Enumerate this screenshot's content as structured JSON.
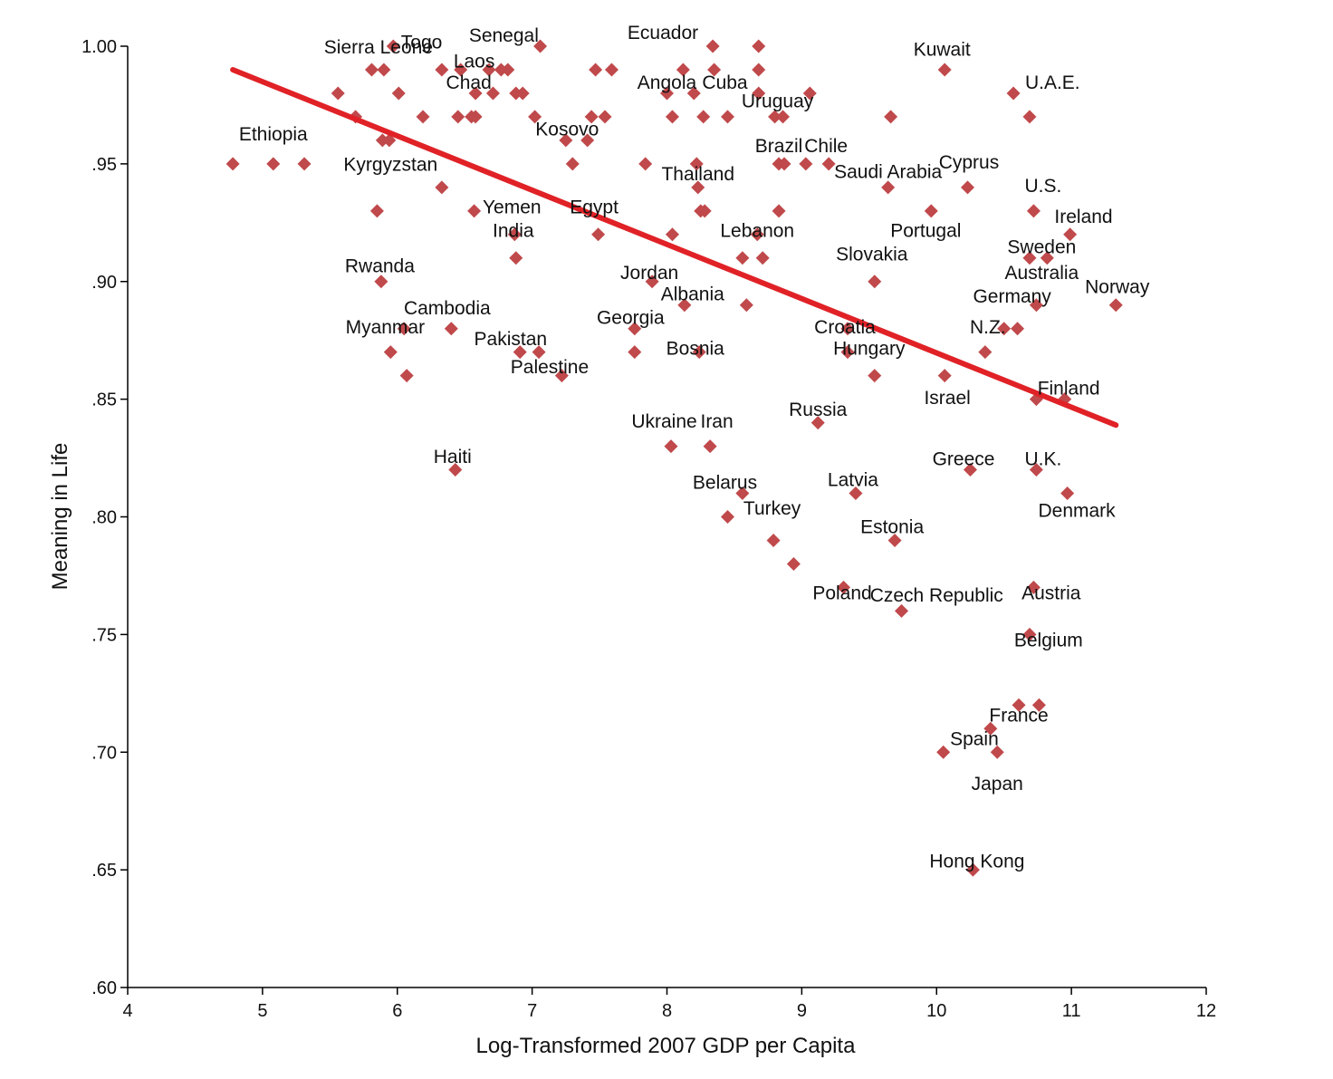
{
  "chart_data": {
    "type": "scatter",
    "xlabel": "Log-Transformed 2007 GDP per Capita",
    "ylabel": "Meaning in Life",
    "xlim": [
      4,
      12
    ],
    "ylim": [
      0.6,
      1.0
    ],
    "x_ticks": [
      4,
      5,
      6,
      7,
      8,
      9,
      10,
      11,
      12
    ],
    "x_tick_labels": [
      "4",
      "5",
      "6",
      "7",
      "8",
      "9",
      "10",
      "11",
      "12"
    ],
    "y_ticks": [
      0.6,
      0.65,
      0.7,
      0.75,
      0.8,
      0.85,
      0.9,
      0.95,
      1.0
    ],
    "y_tick_labels": [
      ".60",
      ".65",
      ".70",
      ".75",
      ".80",
      ".85",
      ".90",
      ".95",
      "1.00"
    ],
    "grid": false,
    "marker": "diamond",
    "point_color": "#c0494b",
    "trend_color": "#e02227",
    "trendline": {
      "x": [
        4.78,
        11.33
      ],
      "y": [
        0.99,
        0.839
      ]
    },
    "points": [
      {
        "x": 4.78,
        "y": 0.95
      },
      {
        "x": 5.08,
        "y": 0.95
      },
      {
        "x": 5.31,
        "y": 0.95
      },
      {
        "x": 5.56,
        "y": 0.98
      },
      {
        "x": 5.69,
        "y": 0.97
      },
      {
        "x": 5.81,
        "y": 0.99
      },
      {
        "x": 5.9,
        "y": 0.99
      },
      {
        "x": 5.97,
        "y": 1.0
      },
      {
        "x": 6.01,
        "y": 0.98
      },
      {
        "x": 5.89,
        "y": 0.96
      },
      {
        "x": 5.94,
        "y": 0.96
      },
      {
        "x": 5.85,
        "y": 0.93
      },
      {
        "x": 5.88,
        "y": 0.9
      },
      {
        "x": 6.05,
        "y": 0.88
      },
      {
        "x": 5.95,
        "y": 0.87
      },
      {
        "x": 6.07,
        "y": 0.86
      },
      {
        "x": 6.19,
        "y": 0.97
      },
      {
        "x": 6.33,
        "y": 0.99
      },
      {
        "x": 6.33,
        "y": 0.94
      },
      {
        "x": 6.47,
        "y": 0.99
      },
      {
        "x": 6.45,
        "y": 0.97
      },
      {
        "x": 6.55,
        "y": 0.97
      },
      {
        "x": 6.58,
        "y": 0.97
      },
      {
        "x": 6.58,
        "y": 0.98
      },
      {
        "x": 6.57,
        "y": 0.93
      },
      {
        "x": 6.4,
        "y": 0.88
      },
      {
        "x": 6.43,
        "y": 0.82
      },
      {
        "x": 6.68,
        "y": 0.99
      },
      {
        "x": 6.71,
        "y": 0.98
      },
      {
        "x": 6.77,
        "y": 0.99
      },
      {
        "x": 6.82,
        "y": 0.99
      },
      {
        "x": 6.88,
        "y": 0.98
      },
      {
        "x": 6.93,
        "y": 0.98
      },
      {
        "x": 6.87,
        "y": 0.92
      },
      {
        "x": 6.88,
        "y": 0.91
      },
      {
        "x": 6.91,
        "y": 0.87
      },
      {
        "x": 7.02,
        "y": 0.97
      },
      {
        "x": 7.06,
        "y": 1.0
      },
      {
        "x": 7.05,
        "y": 0.87
      },
      {
        "x": 7.22,
        "y": 0.86
      },
      {
        "x": 7.25,
        "y": 0.96
      },
      {
        "x": 7.3,
        "y": 0.95
      },
      {
        "x": 7.41,
        "y": 0.96
      },
      {
        "x": 7.44,
        "y": 0.97
      },
      {
        "x": 7.47,
        "y": 0.99
      },
      {
        "x": 7.54,
        "y": 0.97
      },
      {
        "x": 7.59,
        "y": 0.99
      },
      {
        "x": 7.49,
        "y": 0.92
      },
      {
        "x": 7.76,
        "y": 0.88
      },
      {
        "x": 7.76,
        "y": 0.87
      },
      {
        "x": 7.84,
        "y": 0.95
      },
      {
        "x": 7.89,
        "y": 0.9
      },
      {
        "x": 8.0,
        "y": 0.98
      },
      {
        "x": 8.04,
        "y": 0.97
      },
      {
        "x": 8.04,
        "y": 0.92
      },
      {
        "x": 8.12,
        "y": 0.99
      },
      {
        "x": 8.13,
        "y": 0.89
      },
      {
        "x": 8.03,
        "y": 0.83
      },
      {
        "x": 8.2,
        "y": 0.98
      },
      {
        "x": 8.22,
        "y": 0.95
      },
      {
        "x": 8.23,
        "y": 0.94
      },
      {
        "x": 8.25,
        "y": 0.93
      },
      {
        "x": 8.28,
        "y": 0.93
      },
      {
        "x": 8.27,
        "y": 0.97
      },
      {
        "x": 8.24,
        "y": 0.87
      },
      {
        "x": 8.32,
        "y": 0.83
      },
      {
        "x": 8.34,
        "y": 1.0
      },
      {
        "x": 8.35,
        "y": 0.99
      },
      {
        "x": 8.45,
        "y": 0.97
      },
      {
        "x": 8.45,
        "y": 0.8
      },
      {
        "x": 8.56,
        "y": 0.91
      },
      {
        "x": 8.59,
        "y": 0.89
      },
      {
        "x": 8.56,
        "y": 0.81
      },
      {
        "x": 8.67,
        "y": 0.92
      },
      {
        "x": 8.71,
        "y": 0.91
      },
      {
        "x": 8.68,
        "y": 1.0
      },
      {
        "x": 8.68,
        "y": 0.99
      },
      {
        "x": 8.68,
        "y": 0.98
      },
      {
        "x": 8.8,
        "y": 0.97
      },
      {
        "x": 8.86,
        "y": 0.97
      },
      {
        "x": 8.83,
        "y": 0.95
      },
      {
        "x": 8.87,
        "y": 0.95
      },
      {
        "x": 8.83,
        "y": 0.93
      },
      {
        "x": 8.79,
        "y": 0.79
      },
      {
        "x": 8.94,
        "y": 0.78
      },
      {
        "x": 9.03,
        "y": 0.95
      },
      {
        "x": 9.06,
        "y": 0.98
      },
      {
        "x": 9.2,
        "y": 0.95
      },
      {
        "x": 9.12,
        "y": 0.84
      },
      {
        "x": 9.31,
        "y": 0.77
      },
      {
        "x": 9.34,
        "y": 0.88
      },
      {
        "x": 9.34,
        "y": 0.87
      },
      {
        "x": 9.4,
        "y": 0.81
      },
      {
        "x": 9.54,
        "y": 0.9
      },
      {
        "x": 9.54,
        "y": 0.86
      },
      {
        "x": 9.64,
        "y": 0.94
      },
      {
        "x": 9.66,
        "y": 0.97
      },
      {
        "x": 9.69,
        "y": 0.79
      },
      {
        "x": 9.74,
        "y": 0.76
      },
      {
        "x": 9.96,
        "y": 0.93
      },
      {
        "x": 10.06,
        "y": 0.99
      },
      {
        "x": 10.06,
        "y": 0.86
      },
      {
        "x": 10.05,
        "y": 0.7
      },
      {
        "x": 10.23,
        "y": 0.94
      },
      {
        "x": 10.25,
        "y": 0.82
      },
      {
        "x": 10.27,
        "y": 0.65
      },
      {
        "x": 10.36,
        "y": 0.87
      },
      {
        "x": 10.4,
        "y": 0.71
      },
      {
        "x": 10.45,
        "y": 0.7
      },
      {
        "x": 10.5,
        "y": 0.88
      },
      {
        "x": 10.57,
        "y": 0.98
      },
      {
        "x": 10.6,
        "y": 0.88
      },
      {
        "x": 10.61,
        "y": 0.72
      },
      {
        "x": 10.69,
        "y": 0.97
      },
      {
        "x": 10.69,
        "y": 0.91
      },
      {
        "x": 10.69,
        "y": 0.75
      },
      {
        "x": 10.72,
        "y": 0.93
      },
      {
        "x": 10.72,
        "y": 0.77
      },
      {
        "x": 10.74,
        "y": 0.89
      },
      {
        "x": 10.74,
        "y": 0.85
      },
      {
        "x": 10.74,
        "y": 0.82
      },
      {
        "x": 10.76,
        "y": 0.72
      },
      {
        "x": 10.82,
        "y": 0.91
      },
      {
        "x": 10.95,
        "y": 0.85
      },
      {
        "x": 10.97,
        "y": 0.81
      },
      {
        "x": 10.99,
        "y": 0.92
      },
      {
        "x": 11.33,
        "y": 0.89
      }
    ],
    "annotations": [
      {
        "text": "Sierra Leone",
        "x": 5.86,
        "y": 0.997
      },
      {
        "text": "Togo",
        "x": 6.18,
        "y": 0.999
      },
      {
        "text": "Senegal",
        "x": 6.79,
        "y": 1.002
      },
      {
        "text": "Ecuador",
        "x": 7.97,
        "y": 1.003
      },
      {
        "text": "Laos",
        "x": 6.57,
        "y": 0.991
      },
      {
        "text": "Chad",
        "x": 6.53,
        "y": 0.982
      },
      {
        "text": "Angola",
        "x": 8.0,
        "y": 0.982
      },
      {
        "text": "Cuba",
        "x": 8.43,
        "y": 0.982
      },
      {
        "text": "Uruguay",
        "x": 8.82,
        "y": 0.974
      },
      {
        "text": "Kuwait",
        "x": 10.04,
        "y": 0.996
      },
      {
        "text": "U.A.E.",
        "x": 10.86,
        "y": 0.982
      },
      {
        "text": "Ethiopia",
        "x": 5.08,
        "y": 0.96
      },
      {
        "text": "Kosovo",
        "x": 7.26,
        "y": 0.962
      },
      {
        "text": "Brazil",
        "x": 8.83,
        "y": 0.955
      },
      {
        "text": "Chile",
        "x": 9.18,
        "y": 0.955
      },
      {
        "text": "Kyrgyzstan",
        "x": 5.95,
        "y": 0.947
      },
      {
        "text": "Thailand",
        "x": 8.23,
        "y": 0.943
      },
      {
        "text": "Saudi Arabia",
        "x": 9.64,
        "y": 0.944
      },
      {
        "text": "Cyprus",
        "x": 10.24,
        "y": 0.948
      },
      {
        "text": "U.S.",
        "x": 10.79,
        "y": 0.938
      },
      {
        "text": "Yemen",
        "x": 6.85,
        "y": 0.929
      },
      {
        "text": "Egypt",
        "x": 7.46,
        "y": 0.929
      },
      {
        "text": "India",
        "x": 6.86,
        "y": 0.919
      },
      {
        "text": "Lebanon",
        "x": 8.67,
        "y": 0.919
      },
      {
        "text": "Portugal",
        "x": 9.92,
        "y": 0.919
      },
      {
        "text": "Ireland",
        "x": 11.09,
        "y": 0.925
      },
      {
        "text": "Sweden",
        "x": 10.78,
        "y": 0.912
      },
      {
        "text": "Slovakia",
        "x": 9.52,
        "y": 0.909
      },
      {
        "text": "Rwanda",
        "x": 5.87,
        "y": 0.904
      },
      {
        "text": "Australia",
        "x": 10.78,
        "y": 0.901
      },
      {
        "text": "Jordan",
        "x": 7.87,
        "y": 0.901
      },
      {
        "text": "Norway",
        "x": 11.34,
        "y": 0.895
      },
      {
        "text": "Albania",
        "x": 8.19,
        "y": 0.892
      },
      {
        "text": "Germany",
        "x": 10.56,
        "y": 0.891
      },
      {
        "text": "Cambodia",
        "x": 6.37,
        "y": 0.886
      },
      {
        "text": "Georgia",
        "x": 7.73,
        "y": 0.882
      },
      {
        "text": "Myanmar",
        "x": 5.91,
        "y": 0.878
      },
      {
        "text": "Croatia",
        "x": 9.32,
        "y": 0.878
      },
      {
        "text": "N.Z.",
        "x": 10.38,
        "y": 0.878
      },
      {
        "text": "Pakistan",
        "x": 6.84,
        "y": 0.873
      },
      {
        "text": "Bosnia",
        "x": 8.21,
        "y": 0.869
      },
      {
        "text": "Hungary",
        "x": 9.5,
        "y": 0.869
      },
      {
        "text": "Palestine",
        "x": 7.13,
        "y": 0.861
      },
      {
        "text": "Finland",
        "x": 10.98,
        "y": 0.852
      },
      {
        "text": "Israel",
        "x": 10.08,
        "y": 0.848
      },
      {
        "text": "Russia",
        "x": 9.12,
        "y": 0.843
      },
      {
        "text": "Ukraine",
        "x": 7.98,
        "y": 0.838
      },
      {
        "text": "Iran",
        "x": 8.37,
        "y": 0.838
      },
      {
        "text": "Haiti",
        "x": 6.41,
        "y": 0.823
      },
      {
        "text": "Greece",
        "x": 10.2,
        "y": 0.822
      },
      {
        "text": "U.K.",
        "x": 10.79,
        "y": 0.822
      },
      {
        "text": "Belarus",
        "x": 8.43,
        "y": 0.812
      },
      {
        "text": "Latvia",
        "x": 9.38,
        "y": 0.813
      },
      {
        "text": "Turkey",
        "x": 8.78,
        "y": 0.801
      },
      {
        "text": "Denmark",
        "x": 11.04,
        "y": 0.8
      },
      {
        "text": "Estonia",
        "x": 9.67,
        "y": 0.793
      },
      {
        "text": "Austria",
        "x": 10.85,
        "y": 0.765
      },
      {
        "text": "Poland",
        "x": 9.3,
        "y": 0.765
      },
      {
        "text": "Czech Republic",
        "x": 10.0,
        "y": 0.764
      },
      {
        "text": "Belgium",
        "x": 10.83,
        "y": 0.745
      },
      {
        "text": "France",
        "x": 10.61,
        "y": 0.713
      },
      {
        "text": "Spain",
        "x": 10.28,
        "y": 0.703
      },
      {
        "text": "Japan",
        "x": 10.45,
        "y": 0.684
      },
      {
        "text": "Hong Kong",
        "x": 10.3,
        "y": 0.651
      }
    ]
  }
}
